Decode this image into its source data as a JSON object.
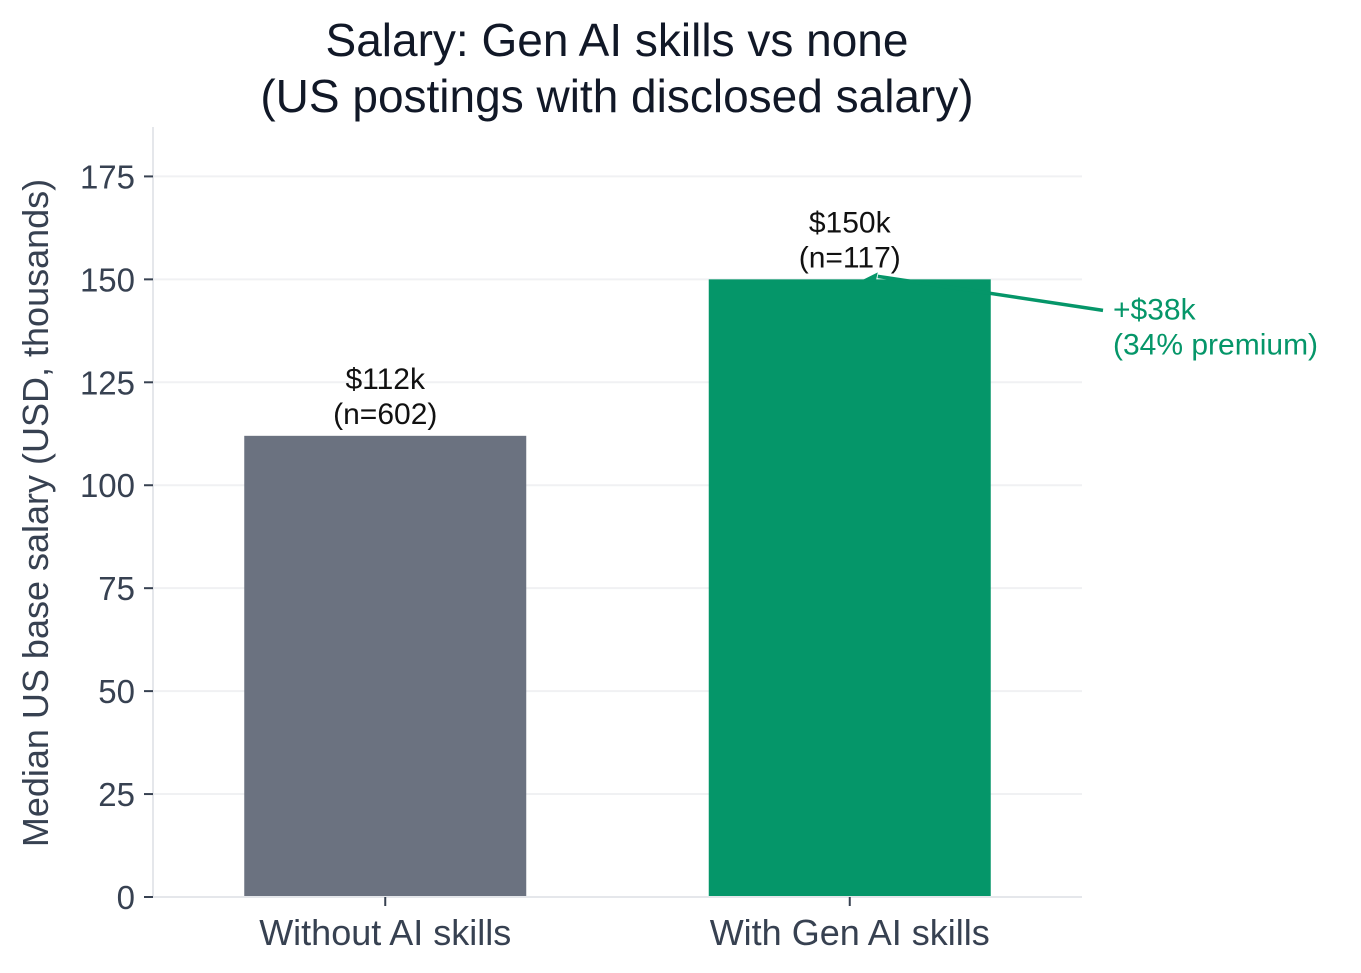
{
  "chart_data": {
    "type": "bar",
    "title": "Salary: Gen AI skills vs none\n(US postings with disclosed salary)",
    "title_lines": [
      "Salary: Gen AI skills vs none",
      "(US postings with disclosed salary)"
    ],
    "xlabel": "",
    "ylabel": "Median US base salary (USD, thousands)",
    "categories": [
      "Without AI skills",
      "With Gen AI skills"
    ],
    "values": [
      112,
      150
    ],
    "sample_sizes": [
      602,
      117
    ],
    "bar_labels": [
      [
        "$112k",
        "(n=602)"
      ],
      [
        "$150k",
        "(n=117)"
      ]
    ],
    "bar_colors": [
      "#6b7280",
      "#059669"
    ],
    "ylim": [
      0,
      187
    ],
    "yticks": [
      0,
      25,
      50,
      75,
      100,
      125,
      150,
      175
    ],
    "grid": "horizontal",
    "annotation": {
      "lines": [
        "+$38k",
        "(34% premium)"
      ],
      "difference": 38,
      "premium_percent": 34,
      "color": "#059669"
    }
  }
}
